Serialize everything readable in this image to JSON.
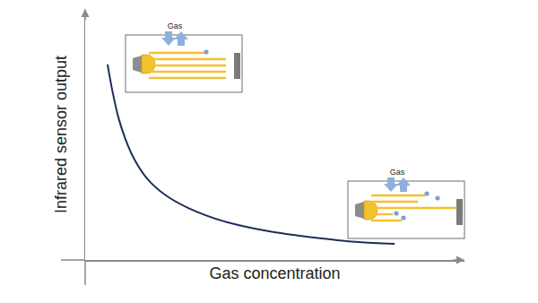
{
  "chart_data": {
    "type": "line",
    "x_label": "Gas concentration",
    "y_label": "Infrared sensor output",
    "x": [
      5.9,
      7.1,
      8.7,
      10.6,
      13.0,
      16.5,
      21.3,
      27.2,
      36.6,
      48.5,
      60.3,
      72.1,
      81.6
    ],
    "values": [
      77.9,
      67.9,
      57.1,
      48.2,
      40.0,
      32.1,
      25.7,
      20.7,
      15.4,
      11.4,
      8.9,
      7.1,
      6.4
    ],
    "color": "#1f2d5c",
    "xlim": [
      0,
      100
    ],
    "ylim": [
      0,
      100
    ],
    "grid": false,
    "tick_labels": false,
    "annotations": [
      "Gas",
      "Gas"
    ]
  }
}
